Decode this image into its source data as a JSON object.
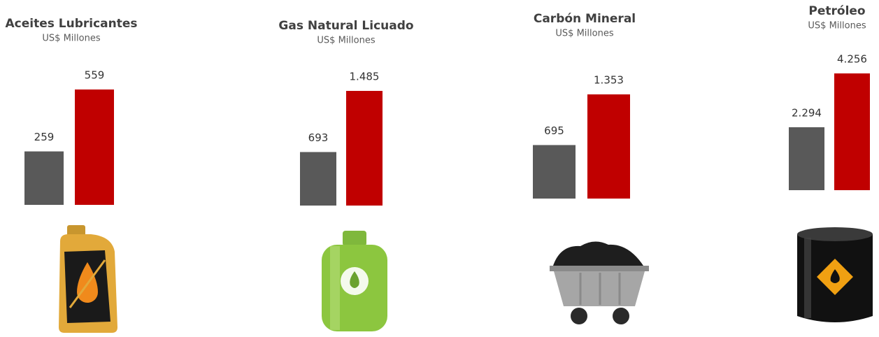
{
  "chart_data": [
    {
      "type": "bar",
      "title": "Aceites Lubricantes",
      "subtitle": "US$ Millones",
      "categories": [
        null,
        null
      ],
      "values": [
        259,
        559
      ],
      "value_labels": [
        "259",
        "559"
      ],
      "colors": [
        "#595959",
        "#c00000"
      ]
    },
    {
      "type": "bar",
      "title": "Gas Natural Licuado",
      "subtitle": "US$ Millones",
      "categories": [
        null,
        null
      ],
      "values": [
        693,
        1485
      ],
      "value_labels": [
        "693",
        "1.485"
      ],
      "colors": [
        "#595959",
        "#c00000"
      ]
    },
    {
      "type": "bar",
      "title": "Carbón Mineral",
      "subtitle": "US$ Millones",
      "categories": [
        null,
        null
      ],
      "values": [
        695,
        1353
      ],
      "value_labels": [
        "695",
        "1.353"
      ],
      "colors": [
        "#595959",
        "#c00000"
      ]
    },
    {
      "type": "bar",
      "title": "Petróleo",
      "subtitle": "US$ Millones",
      "categories": [
        null,
        null
      ],
      "values": [
        2294,
        4256
      ],
      "value_labels": [
        "2.294",
        "4.256"
      ],
      "colors": [
        "#595959",
        "#c00000"
      ]
    }
  ]
}
